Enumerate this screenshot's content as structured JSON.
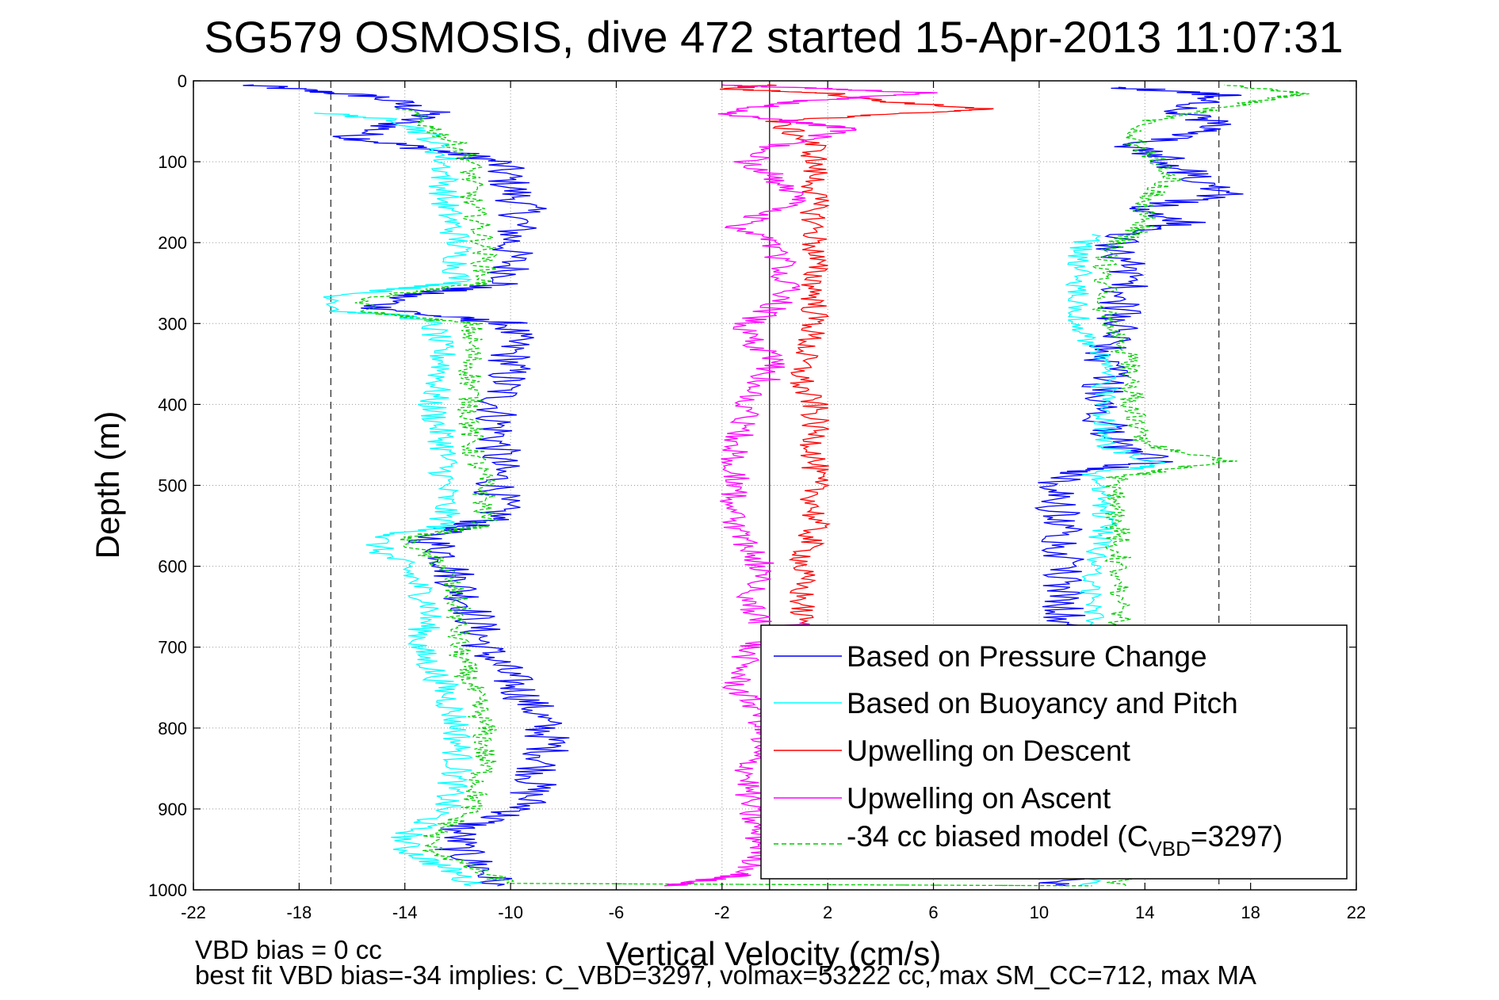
{
  "chart_data": {
    "type": "line",
    "title": "SG579 OSMOSIS, dive 472 started 15-Apr-2013 11:07:31",
    "xlabel": "Vertical Velocity (cm/s)",
    "ylabel": "Depth (m)",
    "xlim": [
      -22,
      22
    ],
    "ylim": [
      1000,
      0
    ],
    "y_reversed": true,
    "grid": true,
    "legend_placement": "bottom-right",
    "x_ticks": [
      -22,
      -18,
      -14,
      -10,
      -6,
      -2,
      2,
      6,
      10,
      14,
      18,
      22
    ],
    "y_ticks": [
      0,
      100,
      200,
      300,
      400,
      500,
      600,
      700,
      800,
      900,
      1000
    ],
    "reference_lines": {
      "dashed_x": [
        -16.8,
        16.8
      ],
      "solid_x": [
        -0.2
      ]
    },
    "footer": {
      "line1": "VBD bias = 0 cc",
      "line2": "best fit VBD bias=-34 implies: C_VBD=3297, volmax=53222 cc, max SM_CC=712, max MA"
    },
    "legend": [
      {
        "label": "Based on Pressure Change",
        "color": "#0000ff",
        "dash": "solid"
      },
      {
        "label": "Based on Buoyancy and Pitch",
        "color": "#00ffff",
        "dash": "solid"
      },
      {
        "label": "Upwelling on Descent",
        "color": "#ff0000",
        "dash": "solid"
      },
      {
        "label": "Upwelling on Ascent",
        "color": "#ff00ff",
        "dash": "solid"
      },
      {
        "label_prefix": "-34 cc biased model (C",
        "label_sub": "VBD",
        "label_suffix": "=3297)",
        "color": "#00cc00",
        "dash": "dashed"
      }
    ],
    "series": [
      {
        "color": "#0000ff",
        "dash": "solid",
        "jitter": 0.9,
        "points": [
          [
            -20,
            5
          ],
          [
            -15,
            20
          ],
          [
            -13,
            40
          ],
          [
            -16,
            70
          ],
          [
            -12,
            90
          ],
          [
            -10.5,
            100
          ],
          [
            -10,
            130
          ],
          [
            -9.5,
            160
          ],
          [
            -10,
            200
          ],
          [
            -10,
            250
          ],
          [
            -14,
            265
          ],
          [
            -15,
            280
          ],
          [
            -13,
            290
          ],
          [
            -10,
            300
          ],
          [
            -10,
            350
          ],
          [
            -10.5,
            400
          ],
          [
            -10.5,
            450
          ],
          [
            -10.5,
            500
          ],
          [
            -10.5,
            540
          ],
          [
            -13,
            560
          ],
          [
            -13,
            570
          ],
          [
            -12.5,
            580
          ],
          [
            -12,
            620
          ],
          [
            -11.5,
            650
          ],
          [
            -11,
            700
          ],
          [
            -10,
            740
          ],
          [
            -9,
            780
          ],
          [
            -8.5,
            820
          ],
          [
            -9,
            860
          ],
          [
            -9.5,
            900
          ],
          [
            -12,
            925
          ],
          [
            -12,
            950
          ],
          [
            -11,
            975
          ],
          [
            -10.5,
            995
          ]
        ]
      },
      {
        "color": "#0000ff",
        "dash": "solid",
        "jitter": 0.9,
        "points": [
          [
            10.5,
            995
          ],
          [
            11,
            990
          ],
          [
            10.5,
            980
          ],
          [
            11,
            950
          ],
          [
            11,
            900
          ],
          [
            11,
            850
          ],
          [
            10.5,
            800
          ],
          [
            10.5,
            750
          ],
          [
            11,
            700
          ],
          [
            11,
            650
          ],
          [
            11,
            600
          ],
          [
            11,
            550
          ],
          [
            10.5,
            510
          ],
          [
            11,
            485
          ],
          [
            14.5,
            470
          ],
          [
            13,
            450
          ],
          [
            12.5,
            420
          ],
          [
            12.5,
            380
          ],
          [
            12.5,
            330
          ],
          [
            13,
            300
          ],
          [
            13,
            270
          ],
          [
            13.5,
            240
          ],
          [
            13,
            210
          ],
          [
            13,
            190
          ],
          [
            15.5,
            175
          ],
          [
            13.5,
            160
          ],
          [
            17,
            140
          ],
          [
            16,
            120
          ],
          [
            15,
            100
          ],
          [
            13.5,
            80
          ],
          [
            17,
            55
          ],
          [
            15,
            35
          ],
          [
            17,
            18
          ],
          [
            13,
            8
          ]
        ]
      },
      {
        "color": "#00ffff",
        "dash": "solid",
        "jitter": 0.6,
        "points": [
          [
            -17,
            40
          ],
          [
            -14,
            50
          ],
          [
            -13,
            70
          ],
          [
            -12.5,
            100
          ],
          [
            -12.5,
            150
          ],
          [
            -12,
            200
          ],
          [
            -12,
            250
          ],
          [
            -16.5,
            265
          ],
          [
            -16.5,
            285
          ],
          [
            -14,
            290
          ],
          [
            -13,
            300
          ],
          [
            -12.5,
            350
          ],
          [
            -13,
            400
          ],
          [
            -12.5,
            450
          ],
          [
            -12.5,
            500
          ],
          [
            -12.5,
            550
          ],
          [
            -15,
            565
          ],
          [
            -15,
            580
          ],
          [
            -14,
            600
          ],
          [
            -13,
            650
          ],
          [
            -13.5,
            700
          ],
          [
            -12.5,
            750
          ],
          [
            -12,
            800
          ],
          [
            -12,
            850
          ],
          [
            -12.5,
            900
          ],
          [
            -14,
            935
          ],
          [
            -14,
            950
          ],
          [
            -12,
            980
          ],
          [
            -11.5,
            995
          ]
        ]
      },
      {
        "color": "#00ffff",
        "dash": "solid",
        "jitter": 0.5,
        "points": [
          [
            12,
            995
          ],
          [
            12.5,
            950
          ],
          [
            12.5,
            900
          ],
          [
            12.5,
            850
          ],
          [
            12,
            800
          ],
          [
            12,
            750
          ],
          [
            12,
            700
          ],
          [
            12,
            650
          ],
          [
            12,
            600
          ],
          [
            12.5,
            550
          ],
          [
            12.5,
            510
          ],
          [
            12,
            485
          ],
          [
            14.5,
            475
          ],
          [
            12.5,
            450
          ],
          [
            12.5,
            400
          ],
          [
            12.5,
            350
          ],
          [
            11.5,
            300
          ],
          [
            11.5,
            250
          ],
          [
            11.5,
            210
          ],
          [
            12,
            190
          ]
        ]
      },
      {
        "color": "#00cc00",
        "dash": "dashed",
        "jitter": 0.5,
        "points": [
          [
            -14,
            35
          ],
          [
            -12,
            80
          ],
          [
            -11.5,
            100
          ],
          [
            -11.5,
            150
          ],
          [
            -11,
            200
          ],
          [
            -11,
            250
          ],
          [
            -15.5,
            268
          ],
          [
            -15.5,
            285
          ],
          [
            -13,
            295
          ],
          [
            -11.5,
            300
          ],
          [
            -11.5,
            350
          ],
          [
            -11.5,
            400
          ],
          [
            -11.5,
            450
          ],
          [
            -11,
            500
          ],
          [
            -11,
            550
          ],
          [
            -14,
            565
          ],
          [
            -13.5,
            580
          ],
          [
            -12.5,
            600
          ],
          [
            -12,
            650
          ],
          [
            -12,
            700
          ],
          [
            -11.5,
            750
          ],
          [
            -11,
            800
          ],
          [
            -11,
            850
          ],
          [
            -11.5,
            900
          ],
          [
            -13,
            935
          ],
          [
            -13,
            950
          ],
          [
            -11,
            980
          ],
          [
            -10,
            992
          ],
          [
            12,
            995
          ]
        ]
      },
      {
        "color": "#00cc00",
        "dash": "dashed",
        "jitter": 0.5,
        "points": [
          [
            13,
            995
          ],
          [
            13.5,
            950
          ],
          [
            13.5,
            900
          ],
          [
            13.5,
            850
          ],
          [
            13,
            800
          ],
          [
            13,
            750
          ],
          [
            13,
            700
          ],
          [
            13,
            650
          ],
          [
            13,
            600
          ],
          [
            13,
            550
          ],
          [
            13,
            510
          ],
          [
            13,
            490
          ],
          [
            17,
            470
          ],
          [
            14,
            450
          ],
          [
            13.5,
            400
          ],
          [
            13.5,
            350
          ],
          [
            12.5,
            300
          ],
          [
            12.5,
            250
          ],
          [
            12.5,
            210
          ],
          [
            14,
            180
          ],
          [
            14,
            150
          ],
          [
            15,
            120
          ],
          [
            14.5,
            100
          ],
          [
            13.5,
            80
          ],
          [
            14,
            50
          ],
          [
            20,
            15
          ],
          [
            17,
            5
          ]
        ]
      },
      {
        "color": "#ff0000",
        "dash": "solid",
        "jitter": 0.55,
        "points": [
          [
            0,
            5
          ],
          [
            -2,
            10
          ],
          [
            2,
            15
          ],
          [
            4,
            25
          ],
          [
            8,
            35
          ],
          [
            5,
            40
          ],
          [
            0,
            50
          ],
          [
            1.5,
            80
          ],
          [
            1.5,
            120
          ],
          [
            1.5,
            150
          ],
          [
            1.5,
            200
          ],
          [
            1.5,
            250
          ],
          [
            1.5,
            300
          ],
          [
            1,
            350
          ],
          [
            1,
            380
          ],
          [
            1.5,
            400
          ],
          [
            1.5,
            450
          ],
          [
            1.5,
            500
          ],
          [
            1.5,
            550
          ],
          [
            1,
            600
          ],
          [
            1,
            650
          ],
          [
            1,
            670
          ]
        ]
      },
      {
        "color": "#ff00ff",
        "dash": "solid",
        "jitter": 0.55,
        "points": [
          [
            1,
            670
          ],
          [
            -1,
            700
          ],
          [
            -1.5,
            750
          ],
          [
            -0.5,
            780
          ],
          [
            -0.5,
            800
          ],
          [
            -1,
            850
          ],
          [
            -1,
            900
          ],
          [
            -0.5,
            950
          ],
          [
            -1,
            980
          ],
          [
            -4,
            995
          ],
          [
            -1,
            980
          ]
        ]
      },
      {
        "color": "#ff00ff",
        "dash": "solid",
        "jitter": 0.6,
        "points": [
          [
            -0.5,
            670
          ],
          [
            -1,
            650
          ],
          [
            -0.5,
            600
          ],
          [
            -1.5,
            550
          ],
          [
            -1.5,
            500
          ],
          [
            -1.5,
            450
          ],
          [
            -1,
            400
          ],
          [
            0,
            350
          ],
          [
            -1,
            320
          ],
          [
            -1,
            300
          ],
          [
            0,
            280
          ],
          [
            0.5,
            250
          ],
          [
            0,
            200
          ],
          [
            -1.5,
            180
          ],
          [
            0,
            160
          ],
          [
            1,
            140
          ],
          [
            0,
            120
          ],
          [
            -1,
            100
          ],
          [
            0,
            80
          ],
          [
            3,
            60
          ],
          [
            -2,
            40
          ],
          [
            1,
            25
          ],
          [
            6,
            15
          ],
          [
            -2,
            5
          ]
        ]
      }
    ]
  }
}
